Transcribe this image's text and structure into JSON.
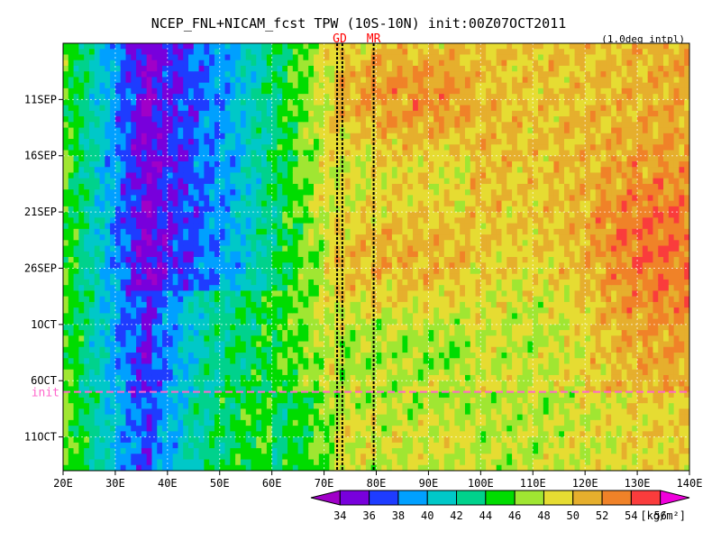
{
  "chart_data": {
    "type": "heatmap",
    "title": "NCEP_FNL+NICAM_fcst TPW (10S-10N) init:00Z07OCT2011",
    "subtitle": "(1.0deg intpl)",
    "x": {
      "unit": "longitude",
      "range": [
        20,
        140
      ],
      "ticks": [
        {
          "value": 20,
          "label": "20E"
        },
        {
          "value": 30,
          "label": "30E"
        },
        {
          "value": 40,
          "label": "40E"
        },
        {
          "value": 50,
          "label": "50E"
        },
        {
          "value": 60,
          "label": "60E"
        },
        {
          "value": 70,
          "label": "70E"
        },
        {
          "value": 80,
          "label": "80E"
        },
        {
          "value": 90,
          "label": "90E"
        },
        {
          "value": 100,
          "label": "100E"
        },
        {
          "value": 110,
          "label": "110E"
        },
        {
          "value": 120,
          "label": "120E"
        },
        {
          "value": 130,
          "label": "130E"
        },
        {
          "value": 140,
          "label": "140E"
        }
      ]
    },
    "y": {
      "unit": "date",
      "range": [
        "2011-09-06",
        "2011-10-14"
      ],
      "reversed": true,
      "ticks": [
        {
          "value": "2011-09-11",
          "label": "11SEP"
        },
        {
          "value": "2011-09-16",
          "label": "16SEP"
        },
        {
          "value": "2011-09-21",
          "label": "21SEP"
        },
        {
          "value": "2011-09-26",
          "label": "26SEP"
        },
        {
          "value": "2011-10-01",
          "label": "1OCT"
        },
        {
          "value": "2011-10-06",
          "label": "6OCT"
        },
        {
          "value": "2011-10-11",
          "label": "11OCT"
        }
      ]
    },
    "init_line": {
      "value": "2011-10-07",
      "label": "init",
      "color": "#ff66cc"
    },
    "markers": [
      {
        "label": "GD",
        "x": [
          72.5,
          73.5
        ],
        "color": "#ff0000"
      },
      {
        "label": "MR",
        "x": [
          79.5
        ],
        "color": "#ff0000"
      }
    ],
    "grid": true,
    "colorbar": {
      "unit": "[kg/m²]",
      "levels": [
        34,
        36,
        38,
        40,
        42,
        44,
        46,
        48,
        50,
        52,
        54,
        56
      ],
      "labels": [
        "34",
        "36",
        "38",
        "40",
        "42",
        "44",
        "46",
        "48",
        "50",
        "52",
        "54",
        "56"
      ],
      "colors": [
        "#a000c8",
        "#7800dc",
        "#1e3cff",
        "#00a0ff",
        "#00c8c8",
        "#00d28c",
        "#00dc00",
        "#a0e632",
        "#e6dc32",
        "#e6af2d",
        "#f08228",
        "#fa3c3c",
        "#f000dc"
      ]
    }
  }
}
